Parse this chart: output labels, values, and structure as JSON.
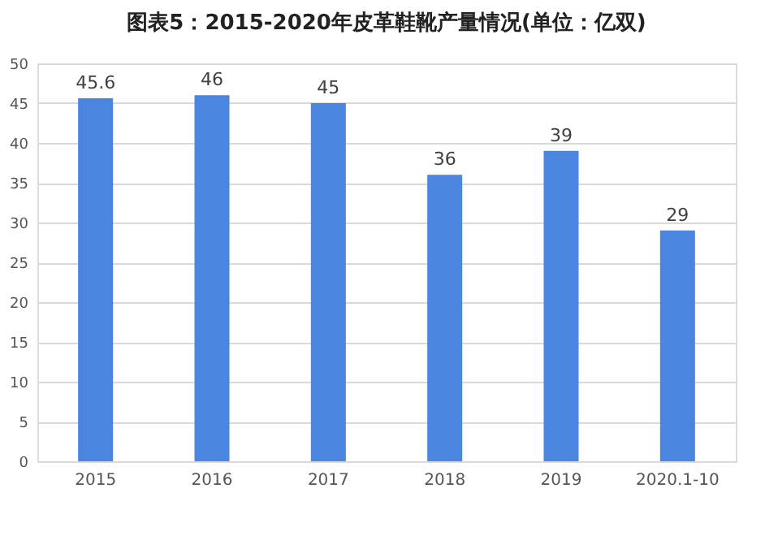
{
  "chart_data": {
    "type": "bar",
    "title": "图表5：2015-2020年皮革鞋靴产量情况(单位：亿双)",
    "categories": [
      "2015",
      "2016",
      "2017",
      "2018",
      "2019",
      "2020.1-10"
    ],
    "values": [
      45.6,
      46,
      45,
      36,
      39,
      29
    ],
    "color": "#4a86e0",
    "ylim": [
      0,
      50
    ],
    "yticks": [
      0,
      5,
      10,
      15,
      20,
      25,
      30,
      35,
      40,
      45,
      50
    ],
    "grid": "y",
    "data_labels": true
  }
}
